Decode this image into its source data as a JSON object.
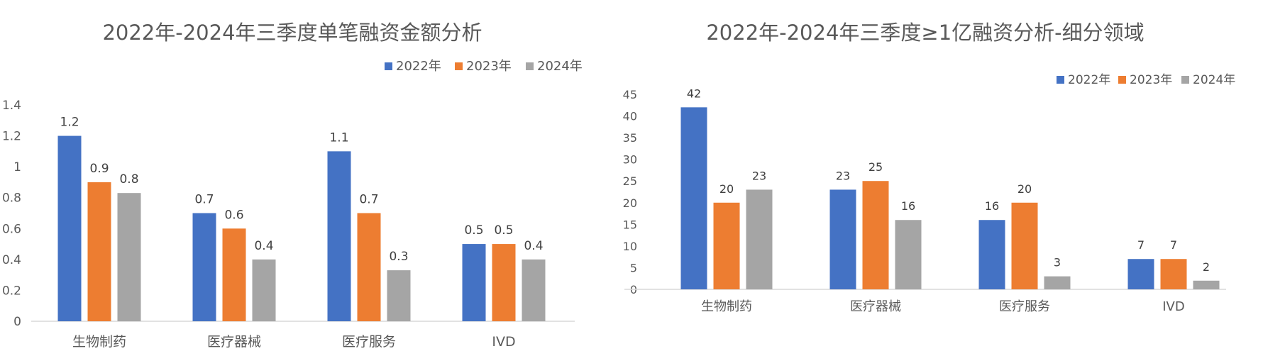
{
  "chart_data": [
    {
      "type": "bar",
      "title": "2022年-2024年三季度单笔融资金额分析",
      "categories": [
        "生物制药",
        "医疗器械",
        "医疗服务",
        "IVD"
      ],
      "series": [
        {
          "name": "2022年",
          "values": [
            1.2,
            0.7,
            1.1,
            0.5
          ],
          "color": "#4472C4"
        },
        {
          "name": "2023年",
          "values": [
            0.9,
            0.6,
            0.7,
            0.5
          ],
          "color": "#ED7D31"
        },
        {
          "name": "2024年",
          "values": [
            0.83,
            0.4,
            0.33,
            0.4
          ],
          "color": "#A5A5A5"
        }
      ],
      "data_labels": [
        [
          "1.2",
          "0.7",
          "1.1",
          "0.5"
        ],
        [
          "0.9",
          "0.6",
          "0.7",
          "0.5"
        ],
        [
          "0.8",
          "0.4",
          "0.3",
          "0.4"
        ]
      ],
      "ylim": [
        0,
        1.4
      ],
      "yticks": [
        "0",
        "0.2",
        "0.4",
        "0.6",
        "0.8",
        "1",
        "1.2",
        "1.4"
      ],
      "xlabel": "",
      "ylabel": "",
      "grid": false,
      "legend": "top-right"
    },
    {
      "type": "bar",
      "title": "2022年-2024年三季度≥1亿融资分析-细分领域",
      "categories": [
        "生物制药",
        "医疗器械",
        "医疗服务",
        "IVD"
      ],
      "series": [
        {
          "name": "2022年",
          "values": [
            42,
            23,
            16,
            7
          ],
          "color": "#4472C4"
        },
        {
          "name": "2023年",
          "values": [
            20,
            25,
            20,
            7
          ],
          "color": "#ED7D31"
        },
        {
          "name": "2024年",
          "values": [
            23,
            16,
            3,
            2
          ],
          "color": "#A5A5A5"
        }
      ],
      "data_labels": [
        [
          "42",
          "23",
          "16",
          "7"
        ],
        [
          "20",
          "25",
          "20",
          "7"
        ],
        [
          "23",
          "16",
          "3",
          "2"
        ]
      ],
      "ylim": [
        0,
        45
      ],
      "yticks": [
        "0",
        "5",
        "10",
        "15",
        "20",
        "25",
        "30",
        "35",
        "40",
        "45"
      ],
      "xlabel": "",
      "ylabel": "",
      "grid": false,
      "legend": "top-right"
    }
  ]
}
